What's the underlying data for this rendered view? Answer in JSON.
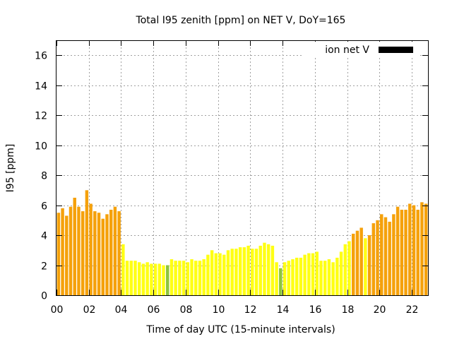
{
  "chart_data": {
    "type": "bar",
    "title": "Total I95 zenith [ppm] on NET V, DoY=165",
    "xlabel": "Time of day UTC (15-minute intervals)",
    "ylabel": "I95 [ppm]",
    "xlim": [
      0,
      23
    ],
    "ylim": [
      0,
      17
    ],
    "xticks": [
      "00",
      "02",
      "04",
      "06",
      "08",
      "10",
      "12",
      "14",
      "16",
      "18",
      "20",
      "22"
    ],
    "xtick_values": [
      0,
      2,
      4,
      6,
      8,
      10,
      12,
      14,
      16,
      18,
      20,
      22
    ],
    "yticks": [
      "0",
      "2",
      "4",
      "6",
      "8",
      "10",
      "12",
      "14",
      "16"
    ],
    "ytick_values": [
      0,
      2,
      4,
      6,
      8,
      10,
      12,
      14,
      16
    ],
    "grid": true,
    "legend": {
      "position": "top-right",
      "label": "ion net V",
      "color": "#000000"
    },
    "colors": {
      "orange": "#f5a10b",
      "yellow": "#ffff14",
      "green": "#8cc43c"
    },
    "bar_interval_hours": 0.25,
    "x": [
      0,
      0.25,
      0.5,
      0.75,
      1,
      1.25,
      1.5,
      1.75,
      2,
      2.25,
      2.5,
      2.75,
      3,
      3.25,
      3.5,
      3.75,
      4,
      4.25,
      4.5,
      4.75,
      5,
      5.25,
      5.5,
      5.75,
      6,
      6.25,
      6.5,
      6.75,
      7,
      7.25,
      7.5,
      7.75,
      8,
      8.25,
      8.5,
      8.75,
      9,
      9.25,
      9.5,
      9.75,
      10,
      10.25,
      10.5,
      10.75,
      11,
      11.25,
      11.5,
      11.75,
      12,
      12.25,
      12.5,
      12.75,
      13,
      13.25,
      13.5,
      13.75,
      14,
      14.25,
      14.5,
      14.75,
      15,
      15.25,
      15.5,
      15.75,
      16,
      16.25,
      16.5,
      16.75,
      17,
      17.25,
      17.5,
      17.75,
      18,
      18.25,
      18.5,
      18.75,
      19,
      19.25,
      19.5,
      19.75,
      20,
      20.25,
      20.5,
      20.75,
      21,
      21.25,
      21.5,
      21.75,
      22,
      22.25,
      22.5,
      22.75
    ],
    "values": [
      5.5,
      5.8,
      5.3,
      5.9,
      6.5,
      5.9,
      5.6,
      7.0,
      6.1,
      5.6,
      5.5,
      5.1,
      5.4,
      5.7,
      5.9,
      5.6,
      3.4,
      2.3,
      2.3,
      2.3,
      2.2,
      2.1,
      2.2,
      2.1,
      2.1,
      2.1,
      2.0,
      2.0,
      2.4,
      2.3,
      2.3,
      2.3,
      2.2,
      2.4,
      2.3,
      2.3,
      2.4,
      2.7,
      3.0,
      2.8,
      2.8,
      2.7,
      3.0,
      3.1,
      3.1,
      3.2,
      3.2,
      3.3,
      3.1,
      3.1,
      3.3,
      3.5,
      3.4,
      3.3,
      2.2,
      1.8,
      2.2,
      2.3,
      2.4,
      2.5,
      2.5,
      2.7,
      2.8,
      2.8,
      2.9,
      2.3,
      2.3,
      2.4,
      2.2,
      2.5,
      2.9,
      3.4,
      3.6,
      4.1,
      4.3,
      4.5,
      3.8,
      4.0,
      4.8,
      5.0,
      5.4,
      5.2,
      4.9,
      5.4,
      5.9,
      5.7,
      5.7,
      6.1,
      6.0,
      5.7,
      6.2,
      6.1
    ],
    "bar_colors": [
      "orange",
      "orange",
      "orange",
      "orange",
      "orange",
      "orange",
      "orange",
      "orange",
      "orange",
      "orange",
      "orange",
      "orange",
      "orange",
      "orange",
      "orange",
      "orange",
      "yellow",
      "yellow",
      "yellow",
      "yellow",
      "yellow",
      "yellow",
      "yellow",
      "yellow",
      "yellow",
      "yellow",
      "yellow",
      "green",
      "yellow",
      "yellow",
      "yellow",
      "yellow",
      "yellow",
      "yellow",
      "yellow",
      "yellow",
      "yellow",
      "yellow",
      "yellow",
      "yellow",
      "yellow",
      "yellow",
      "yellow",
      "yellow",
      "yellow",
      "yellow",
      "yellow",
      "yellow",
      "yellow",
      "yellow",
      "yellow",
      "yellow",
      "yellow",
      "yellow",
      "yellow",
      "green",
      "yellow",
      "yellow",
      "yellow",
      "yellow",
      "yellow",
      "yellow",
      "yellow",
      "yellow",
      "yellow",
      "yellow",
      "yellow",
      "yellow",
      "yellow",
      "yellow",
      "yellow",
      "yellow",
      "yellow",
      "orange",
      "orange",
      "orange",
      "yellow",
      "orange",
      "orange",
      "orange",
      "orange",
      "orange",
      "orange",
      "orange",
      "orange",
      "orange",
      "orange",
      "orange",
      "orange",
      "orange",
      "orange",
      "orange"
    ]
  }
}
